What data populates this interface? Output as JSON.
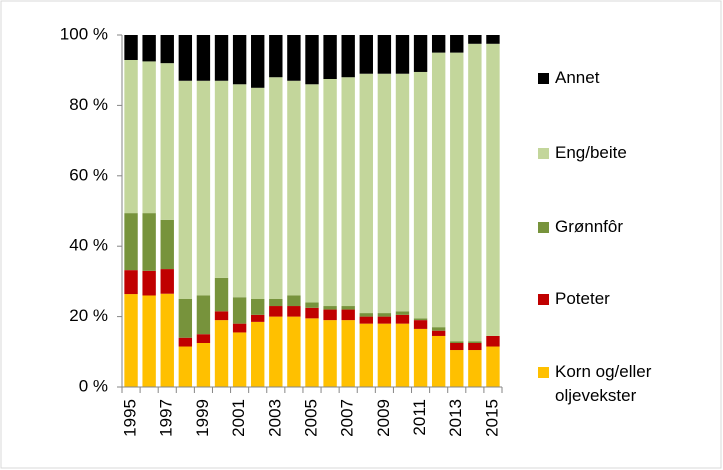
{
  "chart_data": {
    "type": "stacked_bar_percent",
    "categories": [
      "1995",
      null,
      "1997",
      null,
      "1999",
      null,
      "2001",
      null,
      "2003",
      null,
      "2005",
      null,
      "2007",
      null,
      "2009",
      null,
      "2011",
      null,
      "2013",
      null,
      "2015"
    ],
    "series": [
      {
        "name": "Korn og/eller oljevekster",
        "color": "#ffc000",
        "values": [
          26.4,
          26,
          26.5,
          11.5,
          12.5,
          19,
          15.5,
          18.5,
          20,
          20,
          19.5,
          19,
          19,
          18,
          18,
          18,
          16.5,
          14.5,
          10.5,
          10.5,
          11.5
        ]
      },
      {
        "name": "Poteter",
        "color": "#c00000",
        "values": [
          6.8,
          7,
          7,
          2.5,
          2.5,
          2.5,
          2.5,
          2,
          3,
          3,
          3,
          3,
          3,
          2,
          2,
          2.5,
          2.5,
          1.5,
          2,
          2,
          3
        ]
      },
      {
        "name": "Grønnfôr",
        "color": "#77933c",
        "values": [
          16.2,
          16.4,
          14,
          11,
          11,
          9.5,
          7.5,
          4.5,
          2,
          3,
          1.5,
          1,
          1,
          1,
          1,
          1,
          0.5,
          1,
          0.5,
          0.5,
          0
        ]
      },
      {
        "name": "Eng/beite",
        "color": "#c3d69b",
        "values": [
          43.5,
          43.1,
          44.5,
          62,
          61,
          56,
          60.5,
          60,
          63,
          61,
          62,
          64.5,
          65,
          68,
          68,
          67.5,
          70,
          78,
          82,
          84.5,
          83
        ]
      },
      {
        "name": "Annet",
        "color": "#000000",
        "values": [
          7.1,
          7.5,
          8,
          13,
          13,
          13,
          14,
          15,
          12,
          13,
          14,
          12.5,
          12,
          11,
          11,
          11,
          10.5,
          5,
          5,
          2.5,
          2.5
        ]
      }
    ],
    "ylim": [
      0,
      100
    ],
    "yticks": [
      {
        "value": 0,
        "label": "0 %"
      },
      {
        "value": 20,
        "label": "20 %"
      },
      {
        "value": 40,
        "label": "40 %"
      },
      {
        "value": 60,
        "label": "60 %"
      },
      {
        "value": 80,
        "label": "80 %"
      },
      {
        "value": 100,
        "label": "100 %"
      }
    ],
    "legend": "right",
    "grid": false
  }
}
